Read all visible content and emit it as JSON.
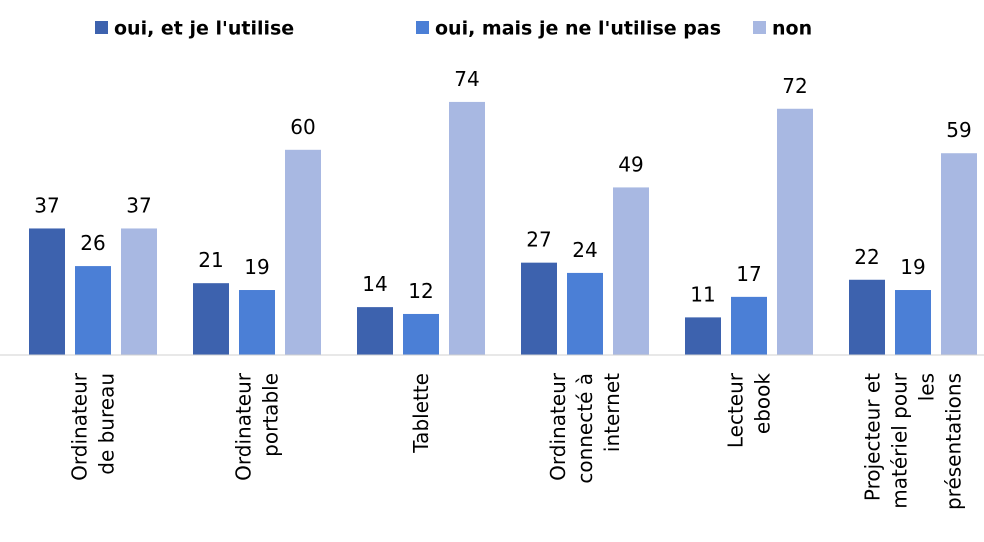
{
  "chart_data": {
    "type": "bar",
    "categories": [
      "Ordinateur\nde bureau",
      "Ordinateur\nportable",
      "Tablette",
      "Ordinateur\nconnecté à\ninternet",
      "Lecteur\nebook",
      "Projecteur et\nmatériel pour\nles\nprésentations"
    ],
    "series": [
      {
        "name": "oui, et je l'utilise",
        "color": "#3d62ae",
        "values": [
          37,
          21,
          14,
          27,
          11,
          22
        ]
      },
      {
        "name": "oui, mais je ne l'utilise pas",
        "color": "#4b7fd6",
        "values": [
          26,
          19,
          12,
          24,
          17,
          19
        ]
      },
      {
        "name": "non",
        "color": "#a8b8e2",
        "values": [
          37,
          60,
          74,
          49,
          72,
          59
        ]
      }
    ],
    "legend": "top"
  }
}
